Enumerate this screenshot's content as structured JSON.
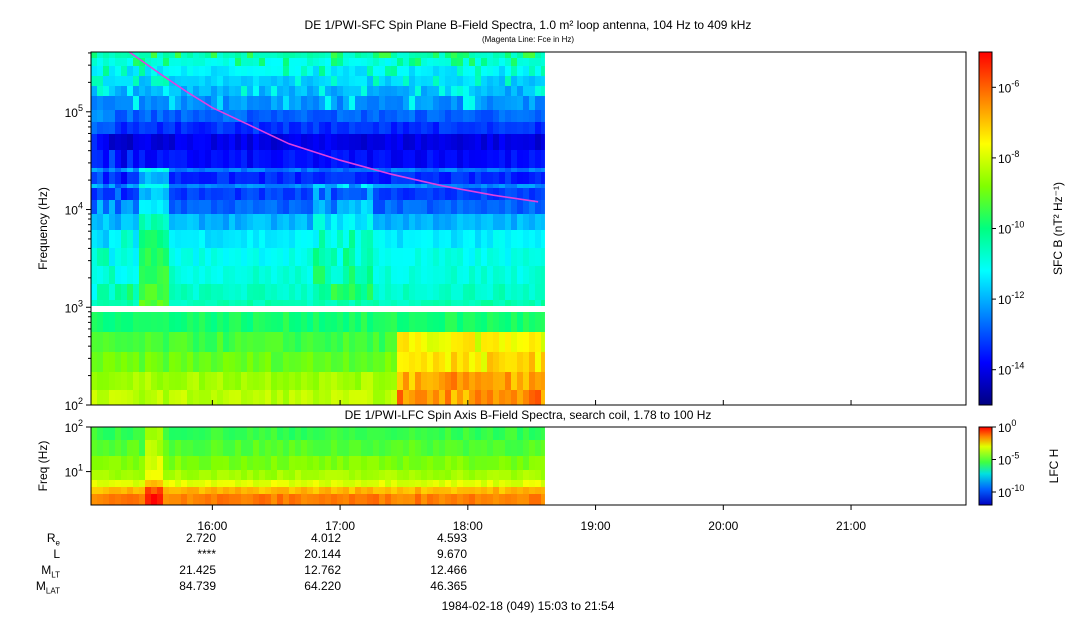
{
  "header": {
    "title": "DE 1/PWI-SFC  Spin Plane B-Field Spectra, 1.0 m² loop antenna, 104 Hz to 409 kHz",
    "subtitle": "(Magenta Line: Fce in Hz)"
  },
  "colors": {
    "fce_line": "#e040e0",
    "colormap": [
      "#000080",
      "#0000ff",
      "#0080ff",
      "#00ffff",
      "#00ff80",
      "#80ff00",
      "#ffff00",
      "#ff8000",
      "#ff0000"
    ]
  },
  "chart_data": [
    {
      "type": "heatmap",
      "name": "sfc-spectrogram",
      "title": "DE 1/PWI-SFC  Spin Plane B-Field Spectra, 1.0 m² loop antenna, 104 Hz to 409 kHz",
      "subtitle": "(Magenta Line: Fce in Hz)",
      "ylabel": "Frequency (Hz)",
      "yscale": "log",
      "ylim": [
        100,
        409000
      ],
      "yticks": [
        {
          "v": 100,
          "b": "10",
          "e": "2"
        },
        {
          "v": 1000,
          "b": "10",
          "e": "3"
        },
        {
          "v": 10000,
          "b": "10",
          "e": "4"
        },
        {
          "v": 100000,
          "b": "10",
          "e": "5"
        }
      ],
      "xlim_hours": [
        15.05,
        21.9
      ],
      "data_end_hours": 18.6,
      "x_ticks": [
        "16:00",
        "17:00",
        "18:00",
        "19:00",
        "20:00",
        "21:00"
      ],
      "x_tick_hours": [
        16,
        17,
        18,
        19,
        20,
        21
      ],
      "colorbar": {
        "label": "SFC B (nT² Hz⁻¹)",
        "scale": "log",
        "range": [
          1e-15,
          1e-05
        ],
        "ticks": [
          {
            "v": -6,
            "b": "10",
            "e": "-6"
          },
          {
            "v": -8,
            "b": "10",
            "e": "-8"
          },
          {
            "v": -10,
            "b": "10",
            "e": "-10"
          },
          {
            "v": -12,
            "b": "10",
            "e": "-12"
          },
          {
            "v": -14,
            "b": "10",
            "e": "-14"
          }
        ]
      },
      "overlay_series": {
        "name": "Fce in Hz",
        "color": "#e040e0",
        "x_hours": [
          15.35,
          15.6,
          15.8,
          16.0,
          16.3,
          16.6,
          17.0,
          17.4,
          17.8,
          18.2,
          18.55
        ],
        "y_hz": [
          409000,
          240000,
          160000,
          110000,
          72000,
          47000,
          32000,
          23000,
          17500,
          14000,
          12000
        ]
      }
    },
    {
      "type": "heatmap",
      "name": "lfc-spectrogram",
      "title": "DE 1/PWI-LFC  Spin Axis B-Field Spectra, search coil, 1.78 to 100 Hz",
      "ylabel": "Freq (Hz)",
      "yscale": "log",
      "ylim": [
        1.78,
        100
      ],
      "yticks": [
        {
          "v": 100,
          "b": "10",
          "e": "2"
        },
        {
          "v": 10,
          "b": "10",
          "e": "1"
        }
      ],
      "xlim_hours": [
        15.05,
        21.9
      ],
      "data_end_hours": 18.6,
      "colorbar": {
        "label": "LFC H",
        "scale": "log",
        "range": [
          1e-12,
          1
        ],
        "ticks": [
          {
            "v": 0,
            "b": "10",
            "e": "0"
          },
          {
            "v": -5,
            "b": "10",
            "e": "-5"
          },
          {
            "v": -10,
            "b": "10",
            "e": "-10"
          }
        ]
      }
    }
  ],
  "ephemeris": {
    "rows": [
      {
        "label": "R",
        "sub": "e",
        "values": [
          "2.720",
          "4.012",
          "4.593"
        ]
      },
      {
        "label": "L",
        "sub": "",
        "values": [
          "****",
          "20.144",
          "9.670"
        ]
      },
      {
        "label": "M",
        "sub": "LT",
        "values": [
          "21.425",
          "12.762",
          "12.466"
        ]
      },
      {
        "label": "M",
        "sub": "LAT",
        "values": [
          "84.739",
          "64.220",
          "46.365"
        ]
      }
    ]
  },
  "footer": {
    "time_range": "1984-02-18 (049) 15:03 to 21:54"
  }
}
